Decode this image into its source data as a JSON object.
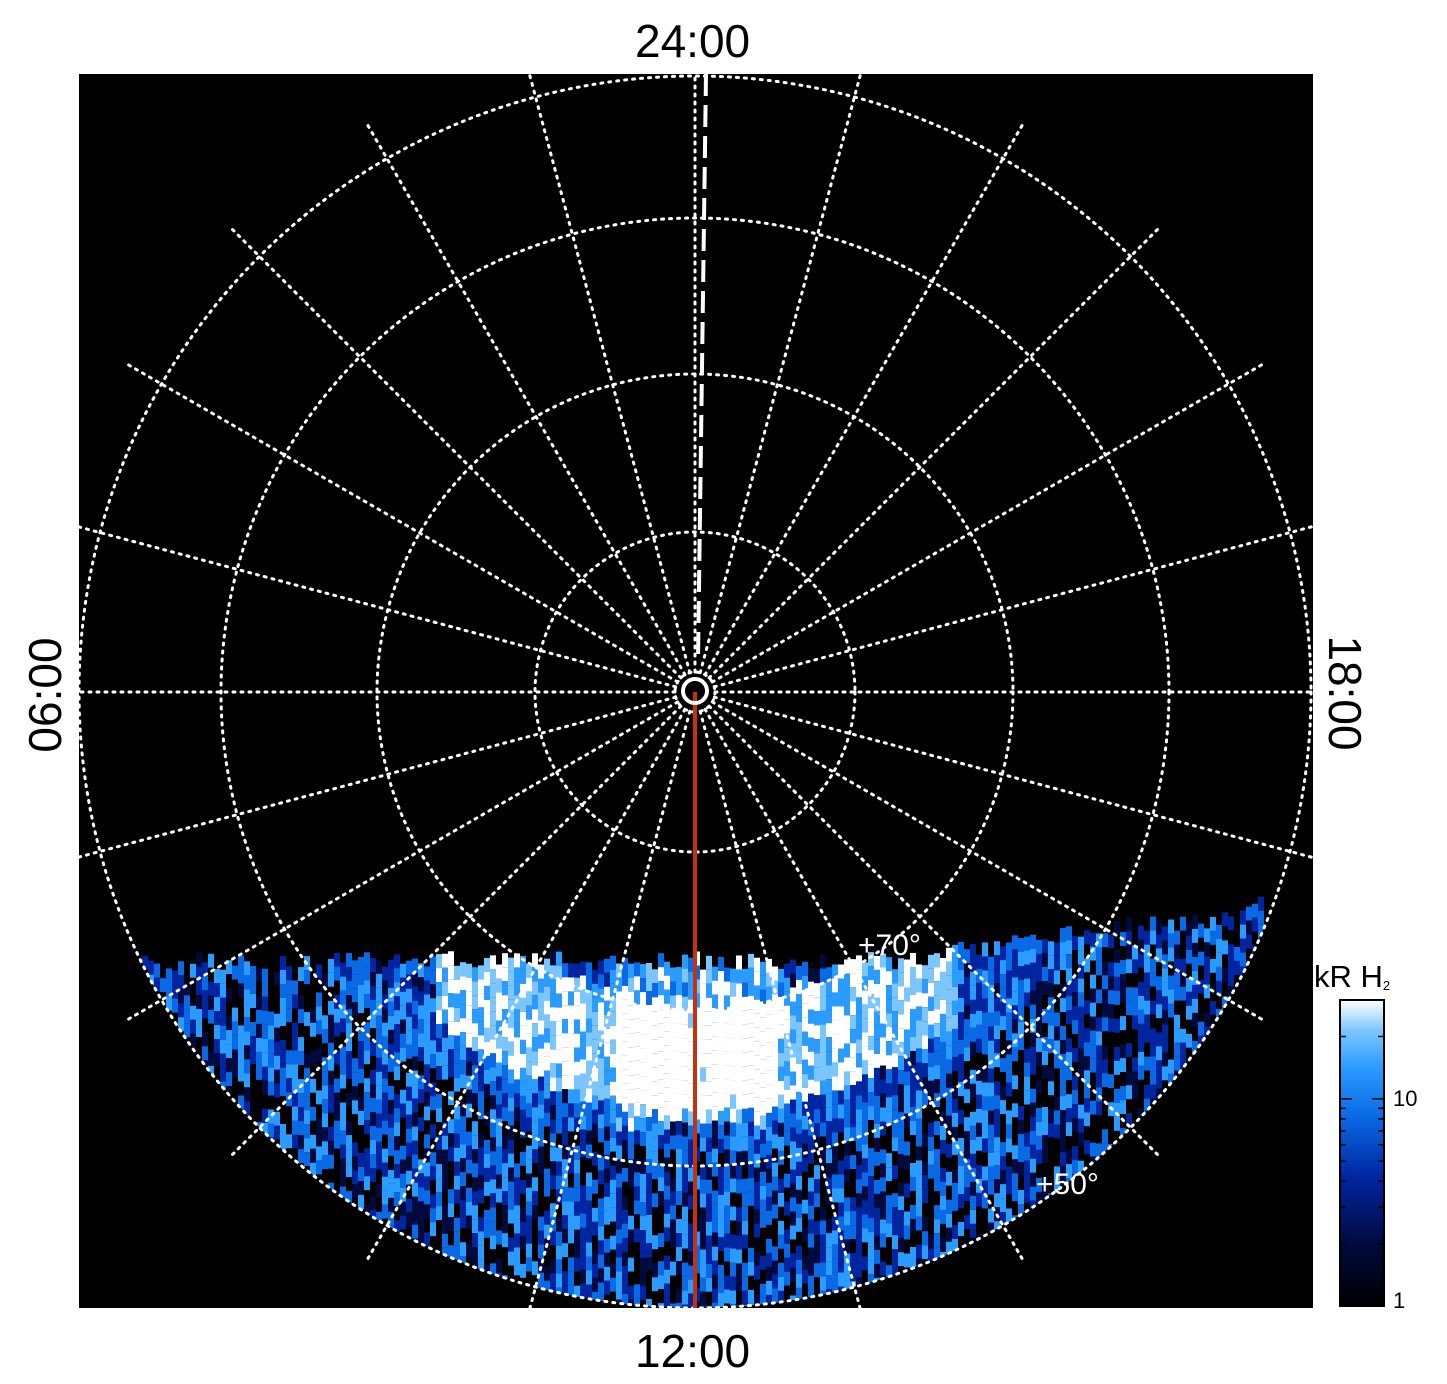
{
  "chart_data": {
    "type": "heatmap",
    "projection": "polar",
    "local_time_labels": {
      "top": "24:00",
      "bottom": "12:00",
      "left": "06:00",
      "right": "18:00"
    },
    "latitude_labels": [
      "+70°",
      "+50°"
    ],
    "colorbar": {
      "title": "kR H",
      "title_subscript": "2",
      "scale": "log",
      "range": [
        1,
        30
      ],
      "tick_labels": [
        "10",
        "1"
      ],
      "colors": [
        "#000000",
        "#000a3c",
        "#0025a0",
        "#0a6ae6",
        "#2b9cff",
        "#7cc6ff",
        "#ffffff"
      ]
    },
    "emission_observed": "lower (dayside) hemisphere only",
    "colors": {
      "background": "#000000",
      "grid": "#ffffff",
      "noon_meridian": "#c8310c"
    }
  }
}
